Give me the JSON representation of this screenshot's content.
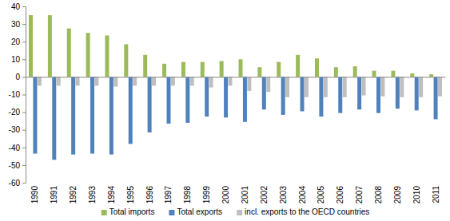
{
  "chart_data": {
    "type": "bar",
    "categories": [
      "1990",
      "1991",
      "1992",
      "1993",
      "1994",
      "1995",
      "1996",
      "1997",
      "1998",
      "1999",
      "2000",
      "2001",
      "2002",
      "2003",
      "2004",
      "2005",
      "2006",
      "2007",
      "2008",
      "2009",
      "2010",
      "2011"
    ],
    "series": [
      {
        "name": "Total imports",
        "color": "#9bbb59",
        "values": [
          35,
          35,
          27.5,
          25,
          23.5,
          18.5,
          12.5,
          7.5,
          8.5,
          8.5,
          9,
          10,
          5.5,
          8.5,
          12.5,
          10.5,
          5.5,
          6,
          3.5,
          3.5,
          2,
          1.5
        ]
      },
      {
        "name": "Total exports",
        "color": "#4f81bd",
        "values": [
          -43.5,
          -47,
          -44,
          -43.5,
          -44,
          -38,
          -31.5,
          -26.5,
          -26,
          -22.5,
          -23,
          -25.5,
          -18.5,
          -21.5,
          -19.5,
          -22.5,
          -20.5,
          -18.5,
          -20.5,
          -18,
          -19,
          -24
        ]
      },
      {
        "name": "incl. exports to the OECD countries",
        "color": "#bfbfbf",
        "values": [
          -5,
          -5,
          -5,
          -5,
          -5.5,
          -5,
          -5,
          -5,
          -5,
          -6,
          -5,
          -8,
          -8.5,
          -11.5,
          -11.5,
          -11.5,
          -11.5,
          -10.5,
          -11,
          -11.5,
          -11.5,
          -11
        ]
      }
    ],
    "ylim": [
      -60,
      40
    ],
    "yticks": [
      -60,
      -50,
      -40,
      -30,
      -20,
      -10,
      0,
      10,
      20,
      30,
      40
    ],
    "grid": false,
    "legend": "bottom"
  }
}
